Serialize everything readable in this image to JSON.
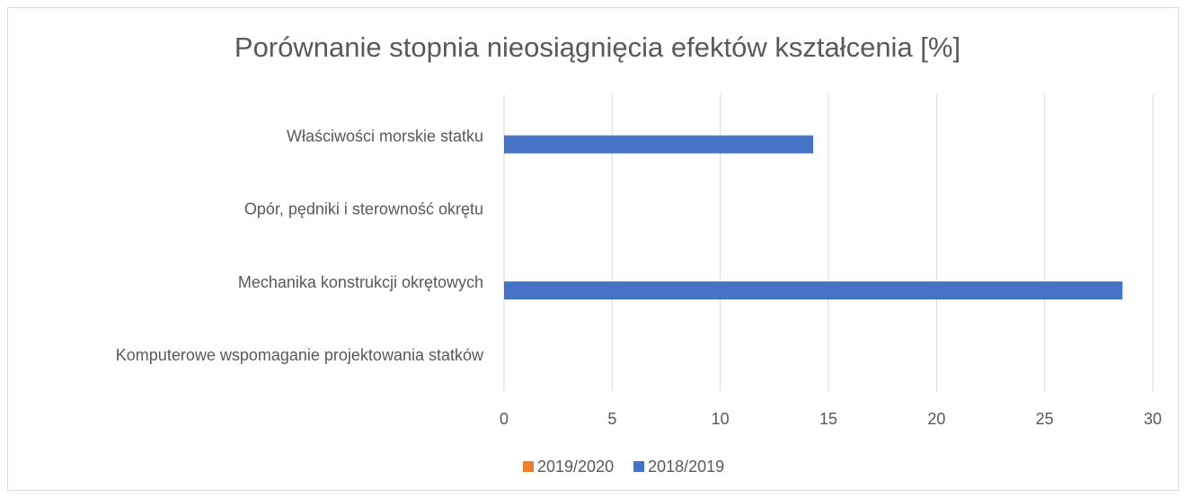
{
  "chart_data": {
    "type": "bar",
    "orientation": "horizontal",
    "title": "Porównanie stopnia nieosiągnięcia efektów kształcenia [%]",
    "categories": [
      "Właściwości morskie statku",
      "Opór, pędniki i sterowność okrętu",
      "Mechanika konstrukcji okrętowych",
      "Komputerowe wspomaganie projektowania statków"
    ],
    "series": [
      {
        "name": "2019/2020",
        "color": "#ed7d31",
        "values": [
          0,
          0,
          0,
          0
        ]
      },
      {
        "name": "2018/2019",
        "color": "#4472c4",
        "values": [
          14.3,
          0,
          28.6,
          0
        ]
      }
    ],
    "xlim": [
      0,
      30
    ],
    "xticks": [
      0,
      5,
      10,
      15,
      20,
      25,
      30
    ],
    "grid": true,
    "legend": "bottom"
  }
}
